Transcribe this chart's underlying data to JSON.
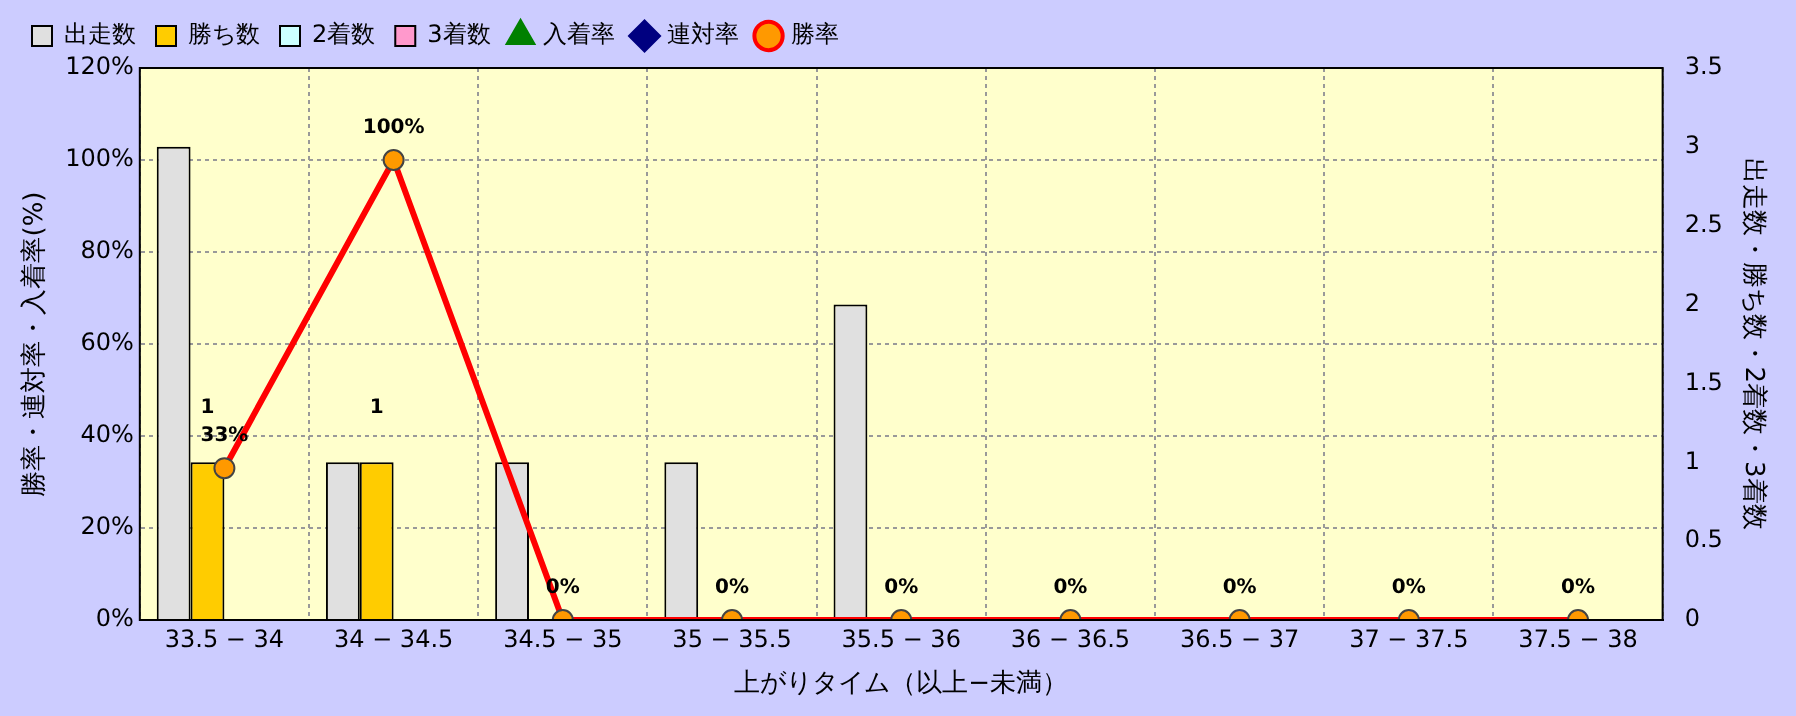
{
  "chart_data": {
    "type": "bar",
    "xlabel": "上がりタイム（以上−未満）",
    "ylabel": "勝率・連対率・入着率(%)",
    "y2label": "出走数・勝ち数・2着数・3着数",
    "categories": [
      "33.5 − 34",
      "34 − 34.5",
      "34.5 − 35",
      "35 − 35.5",
      "35.5 − 36",
      "36 − 36.5",
      "36.5 − 37",
      "37 − 37.5",
      "37.5 − 38"
    ],
    "series": [
      {
        "name": "出走数",
        "axis": "y2",
        "color": "#e0e0e0",
        "values": [
          3,
          1,
          1,
          1,
          2,
          0,
          0,
          0,
          0
        ]
      },
      {
        "name": "勝ち数",
        "axis": "y2",
        "color": "#ffcc00",
        "values": [
          1,
          1,
          0,
          0,
          0,
          0,
          0,
          0,
          0
        ],
        "value_labels": [
          "1",
          "1",
          null,
          null,
          null,
          null,
          null,
          null,
          null
        ]
      },
      {
        "name": "2着数",
        "axis": "y2",
        "color": "#ccffff",
        "values": [
          0,
          0,
          0,
          0,
          0,
          0,
          0,
          0,
          0
        ]
      },
      {
        "name": "3着数",
        "axis": "y2",
        "color": "#ff99cc",
        "values": [
          0,
          0,
          0,
          0,
          0,
          0,
          0,
          0,
          0
        ]
      },
      {
        "name": "入着率",
        "type": "line",
        "color": "#008000",
        "marker": "triangle",
        "values": [
          null,
          null,
          null,
          null,
          null,
          null,
          null,
          null,
          null
        ]
      },
      {
        "name": "連対率",
        "type": "line",
        "color": "#000080",
        "marker": "diamond",
        "values": [
          null,
          null,
          null,
          null,
          null,
          null,
          null,
          null,
          null
        ]
      },
      {
        "name": "勝率",
        "type": "line",
        "color": "#ff0000",
        "marker": "circle",
        "values": [
          33,
          100,
          0,
          0,
          0,
          0,
          0,
          0,
          0
        ],
        "value_labels": [
          "33%",
          "100%",
          "0%",
          "0%",
          "0%",
          "0%",
          "0%",
          "0%",
          "0%"
        ]
      }
    ],
    "ylim": [
      0,
      120
    ],
    "yticks": [
      {
        "value": 0,
        "label": "0%"
      },
      {
        "value": 20,
        "label": "20%"
      },
      {
        "value": 40,
        "label": "40%"
      },
      {
        "value": 60,
        "label": "60%"
      },
      {
        "value": 80,
        "label": "80%"
      },
      {
        "value": 100,
        "label": "100%"
      },
      {
        "value": 120,
        "label": "120%"
      }
    ],
    "y2lim": [
      0,
      3.5
    ],
    "y2ticks": [
      0,
      0.5,
      1,
      1.5,
      2,
      2.5,
      3,
      3.5
    ],
    "grid": true,
    "legend": "top left"
  }
}
